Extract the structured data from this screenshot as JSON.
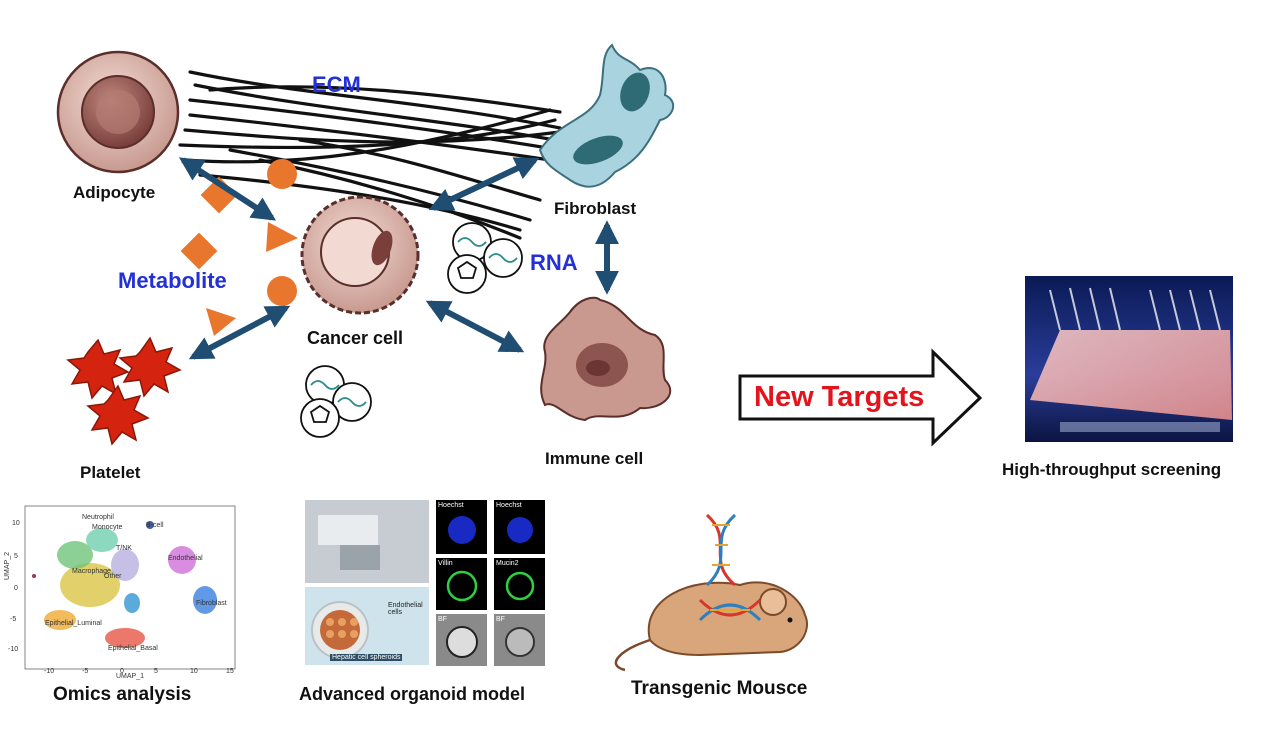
{
  "diagram": {
    "labels": {
      "ecm": "ECM",
      "adipocyte": "Adipocyte",
      "fibroblast": "Fibroblast",
      "rna": "RNA",
      "metabolite": "Metabolite",
      "cancer_cell": "Cancer cell",
      "platelet": "Platelet",
      "immune_cell": "Immune cell",
      "new_targets": "New Targets",
      "hts": "High-throughput screening",
      "omics": "Omics analysis",
      "organoid": "Advanced organoid model",
      "mouse": "Transgenic Mousce"
    },
    "umap": {
      "y_axis_label": "UMAP_2",
      "x_axis_label": "UMAP_1",
      "y_ticks": [
        "10",
        "5",
        "0",
        "-5",
        "-10"
      ],
      "x_ticks": [
        "-10",
        "-5",
        "0",
        "5",
        "10",
        "15"
      ],
      "cluster_labels": [
        "Neutrophil",
        "Macrophage",
        "Other",
        "Endothelial",
        "Epithelial_Luminal",
        "Epithelial_Basal",
        "Fibroblast",
        "B-cell",
        "T/NK",
        "Monocyte"
      ]
    },
    "organoid_panels": {
      "row1": [
        "Hoechst",
        "Hoechst"
      ],
      "row2": [
        "Villin",
        "Mucin2"
      ],
      "row3": [
        "BF",
        "BF"
      ],
      "endothelial": "Endothelial cells",
      "hepatic": "Hepatic cell spheroids"
    },
    "colors": {
      "arrow": "#1f4e72",
      "metabolite": "#e8762d",
      "cell_body": "#d9b2a8",
      "nucleus": "#9a5a55",
      "fibroblast": "#a9d3de",
      "platelet": "#d42410",
      "label_blue": "#2330d8",
      "new_targets_red": "#e4141c"
    }
  }
}
